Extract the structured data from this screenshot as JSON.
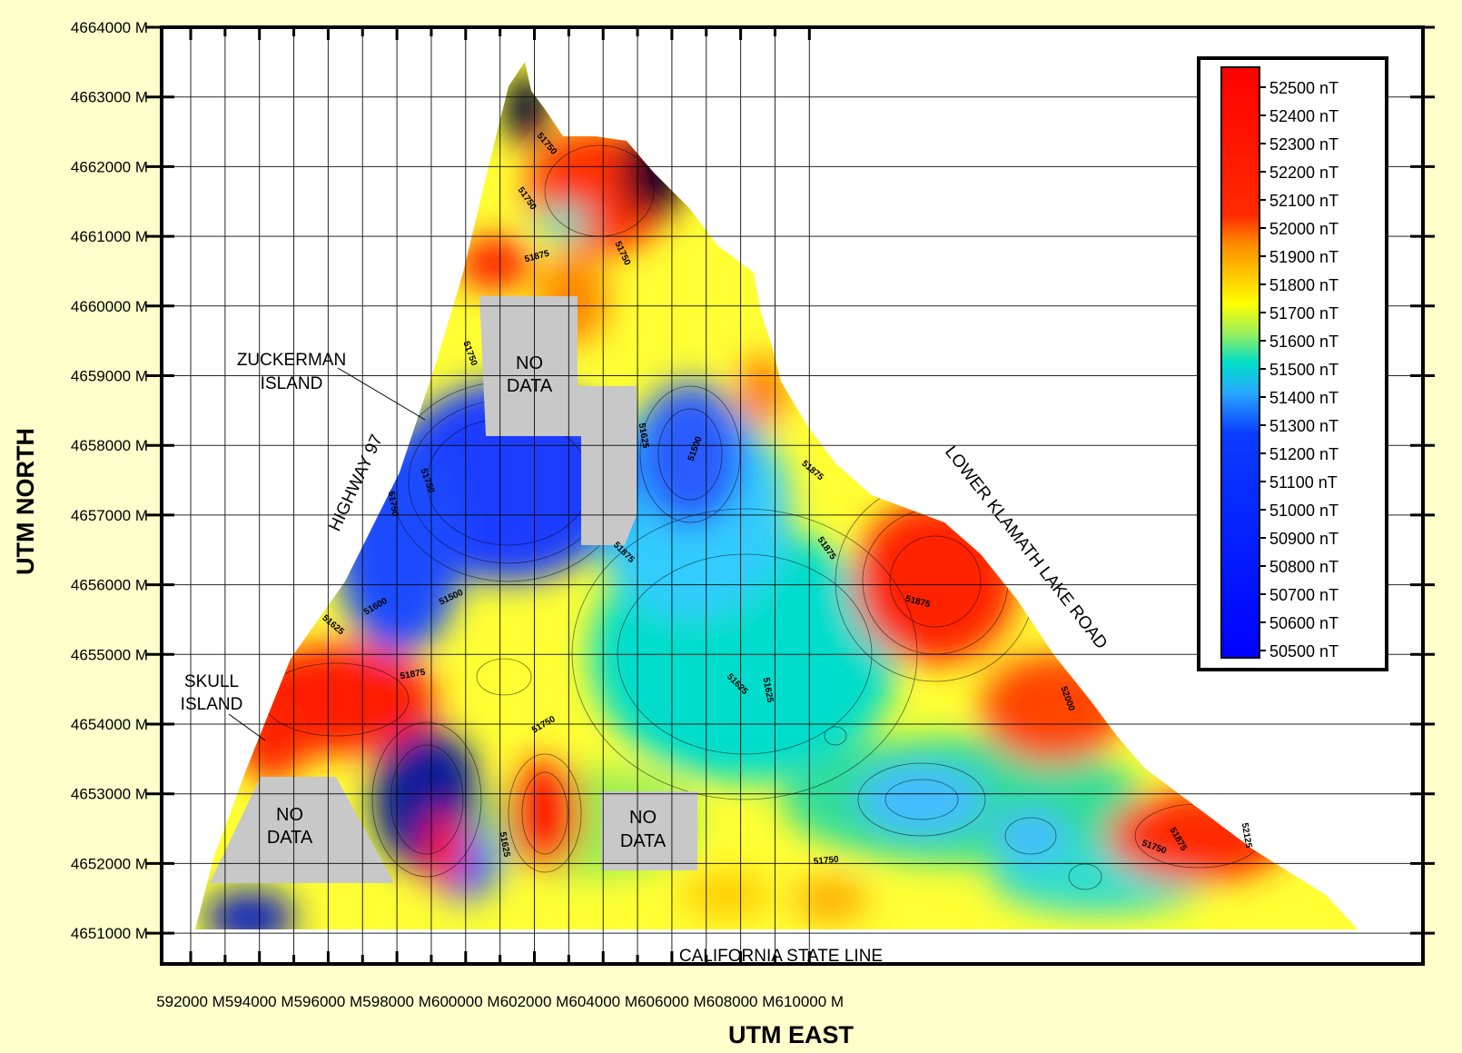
{
  "axes": {
    "x_title": "UTM EAST",
    "y_title": "UTM NORTH",
    "x_ticks": [
      "592000 M",
      "594000 M",
      "596000 M",
      "598000 M",
      "600000 M",
      "602000 M",
      "604000 M",
      "606000 M",
      "608000 M",
      "610000 M"
    ],
    "y_ticks": [
      "4664000 M",
      "4663000 M",
      "4662000 M",
      "4661000 M",
      "4660000 M",
      "4659000 M",
      "4658000 M",
      "4657000 M",
      "4656000 M",
      "4655000 M",
      "4654000 M",
      "4653000 M",
      "4652000 M",
      "4651000 M"
    ]
  },
  "legend": {
    "labels": [
      "52500 nT",
      "52400 nT",
      "52300 nT",
      "52200 nT",
      "52100 nT",
      "52000 nT",
      "51900 nT",
      "51800 nT",
      "51700 nT",
      "51600 nT",
      "51500 nT",
      "51400 nT",
      "51300 nT",
      "51200 nT",
      "51100 nT",
      "51000 nT",
      "50900 nT",
      "50800 nT",
      "50700 nT",
      "50600 nT",
      "50500 nT"
    ],
    "colors": {
      "high": "#ff0000",
      "mid_high": "#ff8800",
      "mid": "#ffff00",
      "mid_low": "#00e5cc",
      "low": "#0000ff"
    }
  },
  "annotations": {
    "zuckerman": [
      "ZUCKERMAN",
      "ISLAND"
    ],
    "skull": [
      "SKULL",
      "ISLAND"
    ],
    "highway": "HIGHWAY 97",
    "road": "LOWER KLAMATH LAKE ROAD",
    "state_line": "CALIFORNIA STATE LINE",
    "nodata": [
      "NO",
      "DATA"
    ]
  },
  "contour_labels": [
    "51750",
    "51750",
    "51875",
    "51750",
    "51750",
    "51625",
    "51875",
    "51500",
    "51875",
    "51750",
    "51875",
    "51875",
    "51750",
    "51500",
    "51600",
    "51625",
    "51875",
    "51625",
    "51750",
    "51625",
    "51625",
    "52000",
    "51750",
    "51875",
    "51750",
    "52125"
  ]
}
